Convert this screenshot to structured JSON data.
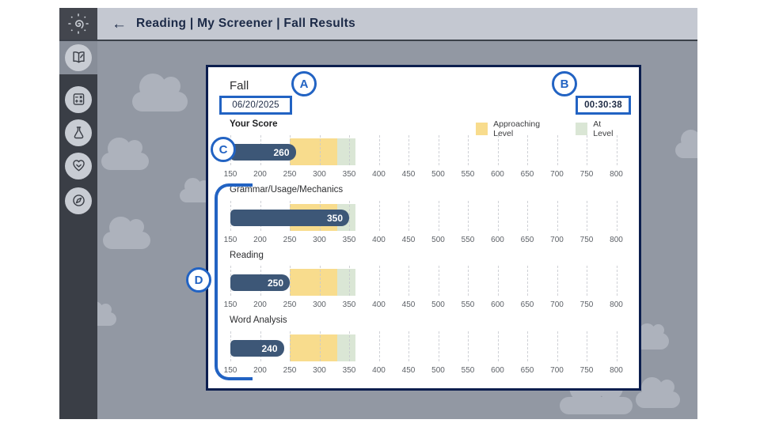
{
  "header": {
    "title": "Reading | My Screener | Fall Results",
    "back_icon": "←"
  },
  "sidebar": {
    "logo_icon": "spiral-sun",
    "items": [
      {
        "name": "reading",
        "icon": "open-book",
        "selected": true
      },
      {
        "name": "math",
        "icon": "calculator",
        "selected": false
      },
      {
        "name": "science",
        "icon": "flask",
        "selected": false
      },
      {
        "name": "health",
        "icon": "heart-check",
        "selected": false
      },
      {
        "name": "explore",
        "icon": "compass",
        "selected": false
      }
    ]
  },
  "card": {
    "season_label": "Fall",
    "date_value": "06/20/2025",
    "time_value": "00:30:38",
    "annotations": {
      "a": "A",
      "b": "B",
      "c": "C",
      "d": "D"
    },
    "legend": [
      {
        "label": "Approaching Level",
        "color": "#f8dc8d"
      },
      {
        "label": "At Level",
        "color": "#dae6d5"
      }
    ]
  },
  "chart_data": {
    "type": "bar",
    "orientation": "horizontal",
    "xlim": [
      150,
      800
    ],
    "ticks": [
      150,
      200,
      250,
      300,
      350,
      400,
      450,
      500,
      550,
      600,
      650,
      700,
      750,
      800
    ],
    "bands": [
      {
        "label": "Approaching Level",
        "from": 250,
        "to": 330,
        "color": "#f8dc8d"
      },
      {
        "label": "At Level",
        "from": 330,
        "to": 360,
        "color": "#dae6d5"
      }
    ],
    "series": [
      {
        "label": "Your Score",
        "value": 260
      },
      {
        "label": "Grammar/Usage/Mechanics",
        "value": 350
      },
      {
        "label": "Reading",
        "value": 250
      },
      {
        "label": "Word Analysis",
        "value": 240
      }
    ],
    "bar_color": "#3d5777",
    "grid": true,
    "legend_position": "top-right"
  },
  "colors": {
    "annotation_blue": "#2263c3",
    "bar_navy": "#3d5777",
    "card_border_navy": "#0c1e4e",
    "approaching_yellow": "#f8dc8d",
    "at_level_green": "#dae6d5"
  }
}
